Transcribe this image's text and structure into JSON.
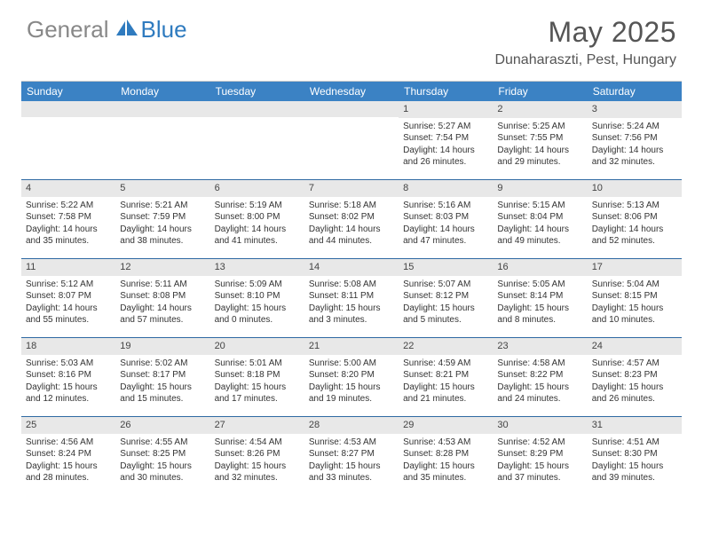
{
  "logo": {
    "general": "General",
    "blue": "Blue"
  },
  "title": "May 2025",
  "location": "Dunaharaszti, Pest, Hungary",
  "colors": {
    "header_bg": "#3b82c4",
    "header_text": "#ffffff",
    "daynum_bg": "#e8e8e8",
    "row_border": "#2f6aa3",
    "body_text": "#333333",
    "logo_gray": "#888888",
    "logo_blue": "#2f7bbf"
  },
  "day_headers": [
    "Sunday",
    "Monday",
    "Tuesday",
    "Wednesday",
    "Thursday",
    "Friday",
    "Saturday"
  ],
  "weeks": [
    [
      null,
      null,
      null,
      null,
      {
        "n": "1",
        "sr": "5:27 AM",
        "ss": "7:54 PM",
        "dl": "14 hours and 26 minutes."
      },
      {
        "n": "2",
        "sr": "5:25 AM",
        "ss": "7:55 PM",
        "dl": "14 hours and 29 minutes."
      },
      {
        "n": "3",
        "sr": "5:24 AM",
        "ss": "7:56 PM",
        "dl": "14 hours and 32 minutes."
      }
    ],
    [
      {
        "n": "4",
        "sr": "5:22 AM",
        "ss": "7:58 PM",
        "dl": "14 hours and 35 minutes."
      },
      {
        "n": "5",
        "sr": "5:21 AM",
        "ss": "7:59 PM",
        "dl": "14 hours and 38 minutes."
      },
      {
        "n": "6",
        "sr": "5:19 AM",
        "ss": "8:00 PM",
        "dl": "14 hours and 41 minutes."
      },
      {
        "n": "7",
        "sr": "5:18 AM",
        "ss": "8:02 PM",
        "dl": "14 hours and 44 minutes."
      },
      {
        "n": "8",
        "sr": "5:16 AM",
        "ss": "8:03 PM",
        "dl": "14 hours and 47 minutes."
      },
      {
        "n": "9",
        "sr": "5:15 AM",
        "ss": "8:04 PM",
        "dl": "14 hours and 49 minutes."
      },
      {
        "n": "10",
        "sr": "5:13 AM",
        "ss": "8:06 PM",
        "dl": "14 hours and 52 minutes."
      }
    ],
    [
      {
        "n": "11",
        "sr": "5:12 AM",
        "ss": "8:07 PM",
        "dl": "14 hours and 55 minutes."
      },
      {
        "n": "12",
        "sr": "5:11 AM",
        "ss": "8:08 PM",
        "dl": "14 hours and 57 minutes."
      },
      {
        "n": "13",
        "sr": "5:09 AM",
        "ss": "8:10 PM",
        "dl": "15 hours and 0 minutes."
      },
      {
        "n": "14",
        "sr": "5:08 AM",
        "ss": "8:11 PM",
        "dl": "15 hours and 3 minutes."
      },
      {
        "n": "15",
        "sr": "5:07 AM",
        "ss": "8:12 PM",
        "dl": "15 hours and 5 minutes."
      },
      {
        "n": "16",
        "sr": "5:05 AM",
        "ss": "8:14 PM",
        "dl": "15 hours and 8 minutes."
      },
      {
        "n": "17",
        "sr": "5:04 AM",
        "ss": "8:15 PM",
        "dl": "15 hours and 10 minutes."
      }
    ],
    [
      {
        "n": "18",
        "sr": "5:03 AM",
        "ss": "8:16 PM",
        "dl": "15 hours and 12 minutes."
      },
      {
        "n": "19",
        "sr": "5:02 AM",
        "ss": "8:17 PM",
        "dl": "15 hours and 15 minutes."
      },
      {
        "n": "20",
        "sr": "5:01 AM",
        "ss": "8:18 PM",
        "dl": "15 hours and 17 minutes."
      },
      {
        "n": "21",
        "sr": "5:00 AM",
        "ss": "8:20 PM",
        "dl": "15 hours and 19 minutes."
      },
      {
        "n": "22",
        "sr": "4:59 AM",
        "ss": "8:21 PM",
        "dl": "15 hours and 21 minutes."
      },
      {
        "n": "23",
        "sr": "4:58 AM",
        "ss": "8:22 PM",
        "dl": "15 hours and 24 minutes."
      },
      {
        "n": "24",
        "sr": "4:57 AM",
        "ss": "8:23 PM",
        "dl": "15 hours and 26 minutes."
      }
    ],
    [
      {
        "n": "25",
        "sr": "4:56 AM",
        "ss": "8:24 PM",
        "dl": "15 hours and 28 minutes."
      },
      {
        "n": "26",
        "sr": "4:55 AM",
        "ss": "8:25 PM",
        "dl": "15 hours and 30 minutes."
      },
      {
        "n": "27",
        "sr": "4:54 AM",
        "ss": "8:26 PM",
        "dl": "15 hours and 32 minutes."
      },
      {
        "n": "28",
        "sr": "4:53 AM",
        "ss": "8:27 PM",
        "dl": "15 hours and 33 minutes."
      },
      {
        "n": "29",
        "sr": "4:53 AM",
        "ss": "8:28 PM",
        "dl": "15 hours and 35 minutes."
      },
      {
        "n": "30",
        "sr": "4:52 AM",
        "ss": "8:29 PM",
        "dl": "15 hours and 37 minutes."
      },
      {
        "n": "31",
        "sr": "4:51 AM",
        "ss": "8:30 PM",
        "dl": "15 hours and 39 minutes."
      }
    ]
  ],
  "labels": {
    "sunrise": "Sunrise:",
    "sunset": "Sunset:",
    "daylight": "Daylight:"
  }
}
